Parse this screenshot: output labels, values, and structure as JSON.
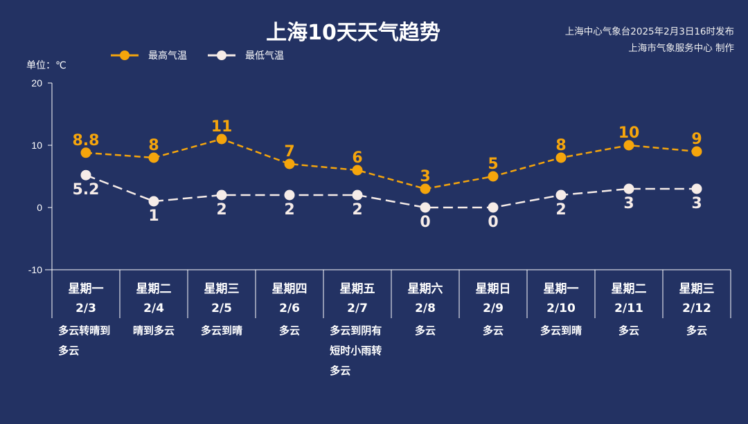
{
  "title": "上海10天天气趋势",
  "publisher": {
    "line1": "上海中心气象台2025年2月3日16时发布",
    "line2": "上海市气象服务中心 制作"
  },
  "unit_label": "单位：℃",
  "colors": {
    "max": "#f5a50c",
    "min": "#f6ece8",
    "background": "#233263"
  },
  "chart_data": {
    "type": "line",
    "title": "上海10天天气趋势",
    "ylabel": "单位：℃",
    "ylim": [
      -10,
      20
    ],
    "yticks": [
      20,
      10,
      0,
      -10
    ],
    "legend": "top-left",
    "categories": [
      {
        "weekday": "星期一",
        "date": "2/3",
        "weather": "多云转晴到多云"
      },
      {
        "weekday": "星期二",
        "date": "2/4",
        "weather": "晴到多云"
      },
      {
        "weekday": "星期三",
        "date": "2/5",
        "weather": "多云到晴"
      },
      {
        "weekday": "星期四",
        "date": "2/6",
        "weather": "多云"
      },
      {
        "weekday": "星期五",
        "date": "2/7",
        "weather": "多云到阴有短时小雨转多云"
      },
      {
        "weekday": "星期六",
        "date": "2/8",
        "weather": "多云"
      },
      {
        "weekday": "星期日",
        "date": "2/9",
        "weather": "多云"
      },
      {
        "weekday": "星期一",
        "date": "2/10",
        "weather": "多云到晴"
      },
      {
        "weekday": "星期二",
        "date": "2/11",
        "weather": "多云"
      },
      {
        "weekday": "星期三",
        "date": "2/12",
        "weather": "多云"
      }
    ],
    "series": [
      {
        "name": "最高气温",
        "values": [
          8.8,
          8,
          11,
          7,
          6,
          3,
          5,
          8,
          10,
          9
        ]
      },
      {
        "name": "最低气温",
        "values": [
          5.2,
          1,
          2,
          2,
          2,
          0,
          0,
          2,
          3,
          3
        ]
      }
    ]
  }
}
